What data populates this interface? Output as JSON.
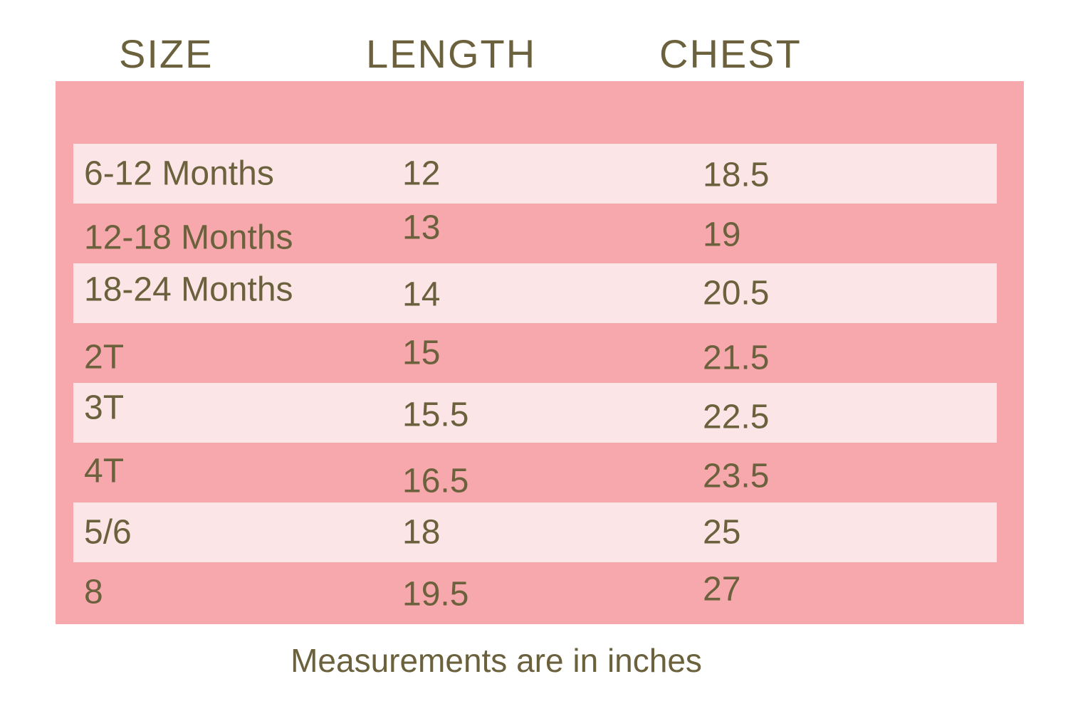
{
  "chart_data": {
    "type": "table",
    "columns": [
      "SIZE",
      "LENGTH",
      "CHEST"
    ],
    "rows": [
      [
        "6-12 Months",
        12,
        18.5
      ],
      [
        "12-18 Months",
        13,
        19
      ],
      [
        "18-24 Months",
        14,
        20.5
      ],
      [
        "2T",
        15,
        21.5
      ],
      [
        "3T",
        15.5,
        22.5
      ],
      [
        "4T",
        16.5,
        23.5
      ],
      [
        "5/6",
        18,
        25
      ],
      [
        "8",
        19.5,
        27
      ]
    ],
    "note": "Measurements are in inches",
    "units": "inches",
    "layout": "alternating row stripes, no gridlines"
  },
  "style": {
    "background": "#FFFFFF",
    "table_background": "#F7A8AD",
    "row_highlight": "#FCE5E7",
    "text_color": "#6B613C"
  }
}
